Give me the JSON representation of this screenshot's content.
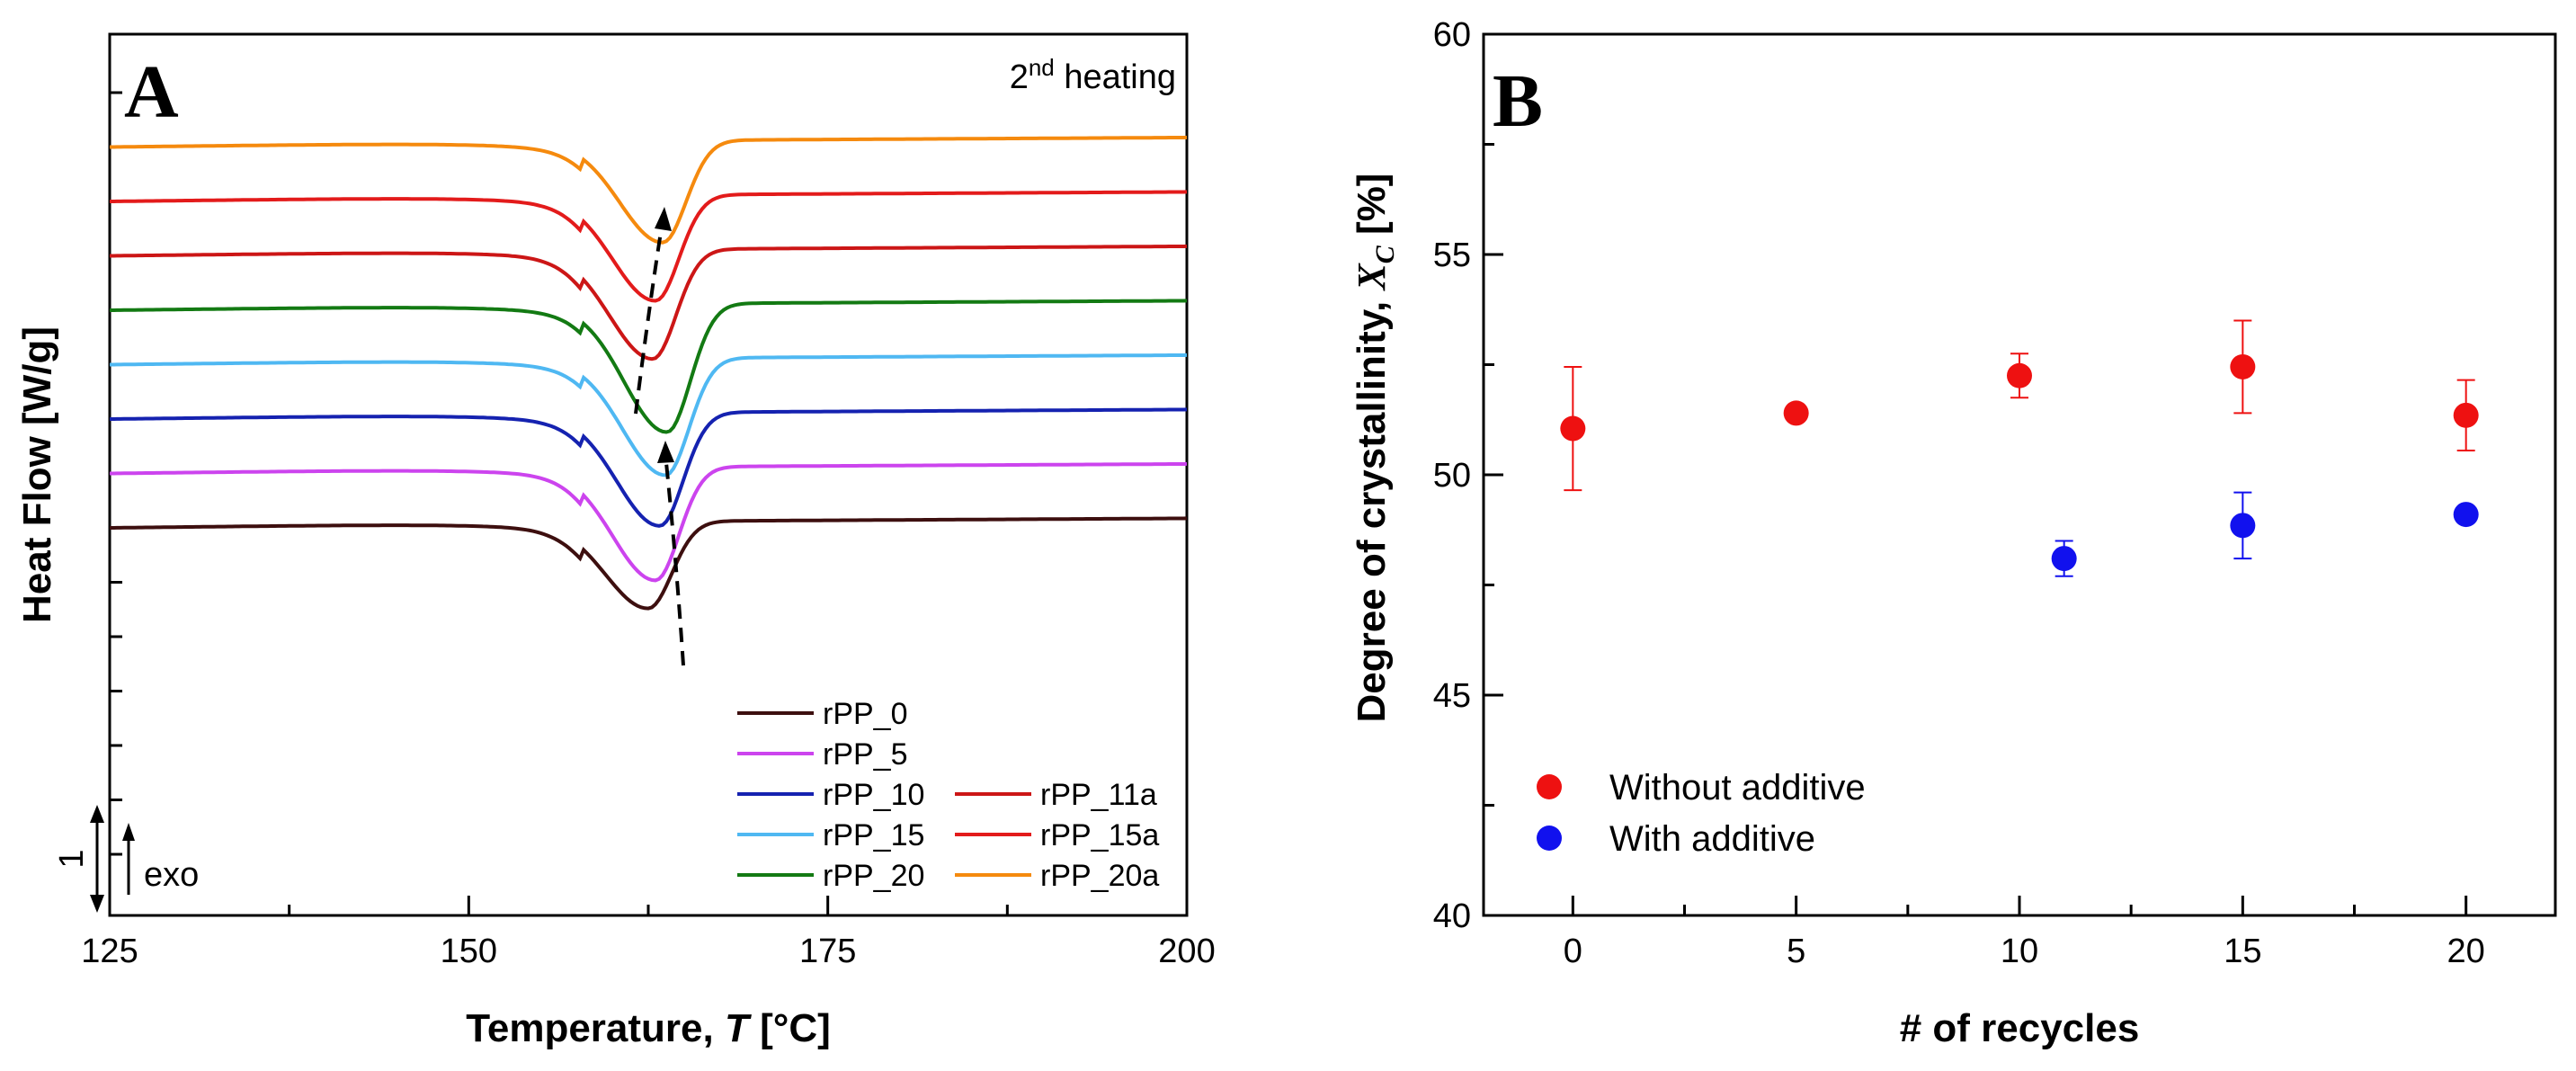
{
  "chart_data": [
    {
      "panel": "A",
      "type": "line",
      "annotation": "heating",
      "annotation_sup": "nd",
      "annotation_num": "2",
      "xlabel": "Temperature, ",
      "xlabel_var": "T",
      "xlabel_unit": " [°C]",
      "ylabel": "Heat Flow [W/g]",
      "xlim": [
        125,
        200
      ],
      "xticks": [
        "125",
        "150",
        "175",
        "200"
      ],
      "scale_bar_label": "1",
      "exo_label": "exo",
      "series": [
        {
          "name": "rPP_0",
          "color": "#3d0f0f",
          "baseline_left": 0,
          "baseline_right": 0,
          "peak_T": 162.5,
          "depth": 2.3
        },
        {
          "name": "rPP_5",
          "color": "#cc44ee",
          "baseline_left": 1,
          "baseline_right": 1,
          "peak_T": 163.0,
          "depth": 3.0
        },
        {
          "name": "rPP_10",
          "color": "#1522b0",
          "baseline_left": 2,
          "baseline_right": 2,
          "peak_T": 163.3,
          "depth": 3.0
        },
        {
          "name": "rPP_15",
          "color": "#4fb8f2",
          "baseline_left": 3,
          "baseline_right": 3,
          "peak_T": 163.7,
          "depth": 3.1
        },
        {
          "name": "rPP_20",
          "color": "#137a13",
          "baseline_left": 4,
          "baseline_right": 4,
          "peak_T": 163.8,
          "depth": 3.4
        },
        {
          "name": "rPP_11a",
          "color": "#cc1616",
          "baseline_left": 5,
          "baseline_right": 5,
          "peak_T": 162.8,
          "depth": 2.9
        },
        {
          "name": "rPP_15a",
          "color": "#e31b1b",
          "baseline_left": 6,
          "baseline_right": 6,
          "peak_T": 163.0,
          "depth": 2.8
        },
        {
          "name": "rPP_20a",
          "color": "#f58a0e",
          "baseline_left": 7,
          "baseline_right": 7,
          "peak_T": 163.5,
          "depth": 2.7
        }
      ]
    },
    {
      "panel": "B",
      "type": "scatter",
      "xlabel": "# of recycles",
      "ylabel": "Degree of crystallinity, ",
      "ylabel_var": "X",
      "ylabel_sub": "C",
      "ylabel_unit": " [%]",
      "xlim": [
        -2,
        22
      ],
      "ylim": [
        40,
        60
      ],
      "xticks": [
        "0",
        "5",
        "10",
        "15",
        "20"
      ],
      "yticks": [
        "40",
        "45",
        "50",
        "55",
        "60"
      ],
      "series": [
        {
          "name": "Without additive",
          "color": "#ee1111",
          "points": [
            {
              "x": 0,
              "y": 51.05,
              "err": 1.4
            },
            {
              "x": 5,
              "y": 51.4,
              "err": 0
            },
            {
              "x": 10,
              "y": 52.25,
              "err": 0.5
            },
            {
              "x": 15,
              "y": 52.45,
              "err": 1.05
            },
            {
              "x": 20,
              "y": 51.35,
              "err": 0.8
            }
          ]
        },
        {
          "name": "With additive",
          "color": "#1111ee",
          "points": [
            {
              "x": 11,
              "y": 48.1,
              "err": 0.4
            },
            {
              "x": 15,
              "y": 48.85,
              "err": 0.75
            },
            {
              "x": 20,
              "y": 49.1,
              "err": 0
            }
          ]
        }
      ]
    }
  ]
}
